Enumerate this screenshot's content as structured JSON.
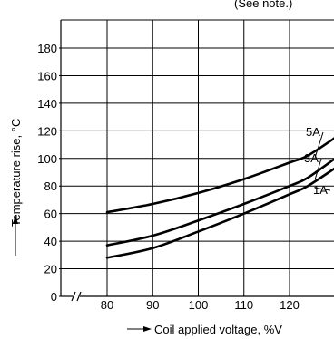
{
  "note": "(See note.)",
  "chart_data": {
    "type": "line",
    "xlabel": "Coil applied voltage, %V",
    "ylabel": "Temperature rise, °C",
    "x_ticks": [
      80,
      90,
      100,
      110,
      120
    ],
    "y_ticks": [
      0,
      20,
      40,
      60,
      80,
      100,
      120,
      140,
      160,
      180
    ],
    "xlim": [
      70,
      130
    ],
    "ylim": [
      0,
      190
    ],
    "x_axis_break": true,
    "grid": true,
    "series": [
      {
        "name": "5A",
        "x": [
          80,
          90,
          100,
          110,
          120,
          124,
          130
        ],
        "y": [
          61,
          67,
          75,
          85,
          97,
          102,
          115
        ]
      },
      {
        "name": "3A",
        "x": [
          80,
          90,
          100,
          110,
          120,
          124,
          130
        ],
        "y": [
          37,
          44,
          55,
          67,
          80,
          86,
          100
        ]
      },
      {
        "name": "1A",
        "x": [
          80,
          90,
          100,
          110,
          120,
          124,
          130
        ],
        "y": [
          28,
          35,
          47,
          60,
          74,
          80,
          93
        ]
      }
    ]
  }
}
